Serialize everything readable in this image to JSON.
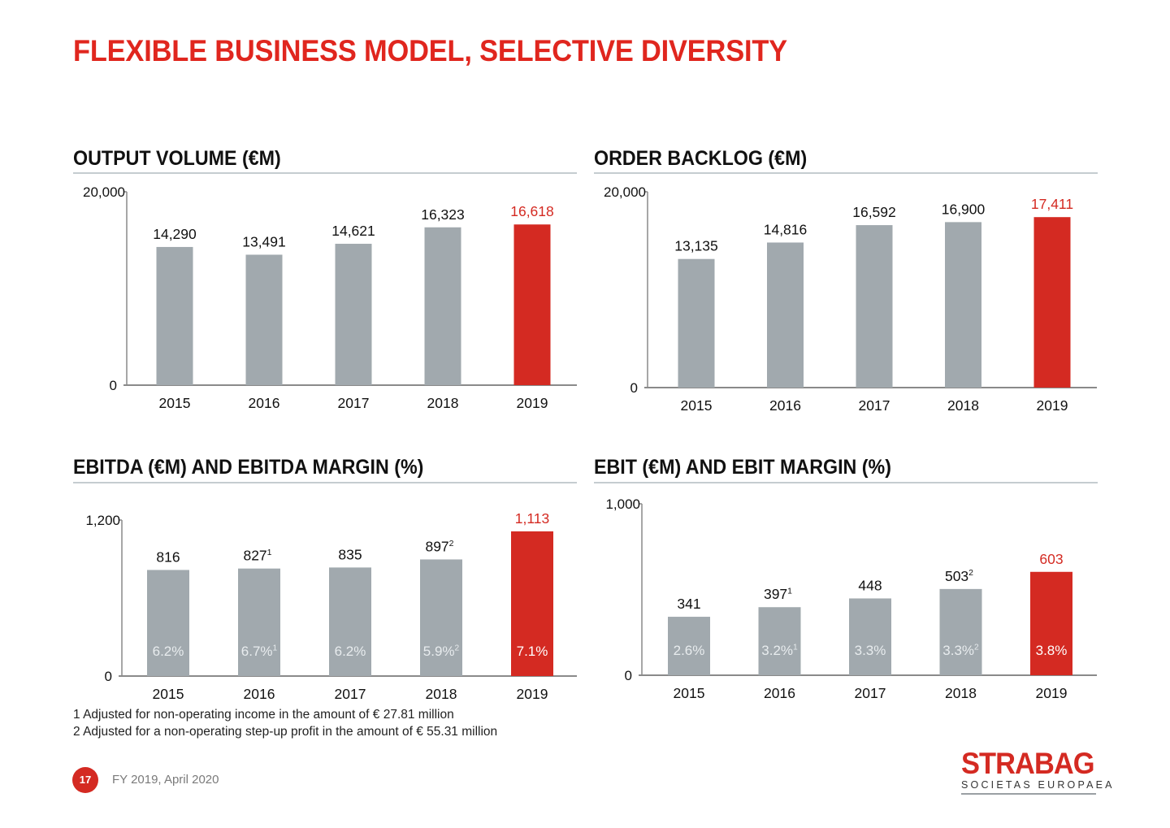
{
  "page": {
    "title": "FLEXIBLE BUSINESS MODEL, SELECTIVE DIVERSITY",
    "page_number": "17",
    "footer_text": "FY 2019, April 2020",
    "footnotes": [
      "1 Adjusted for non-operating income in the amount of € 27.81 million",
      "2 Adjusted for a non-operating step-up profit in the amount of € 55.31 million"
    ],
    "logo": {
      "name": "STRABAG",
      "subtitle": "SOCIETAS EUROPAEA"
    },
    "colors": {
      "accent": "#d42a22",
      "bar": "#a1a9ae",
      "axis": "#8a8a8a",
      "rule": "#c5ccd0",
      "margin_text": "#e8ecee"
    }
  },
  "chart_data": [
    {
      "type": "bar",
      "title": "OUTPUT VOLUME (€M)",
      "categories": [
        "2015",
        "2016",
        "2017",
        "2018",
        "2019"
      ],
      "values": [
        14290,
        13491,
        14621,
        16323,
        16618
      ],
      "value_labels": [
        "14,290",
        "13,491",
        "14,621",
        "16,323",
        "16,618"
      ],
      "highlight_index": 4,
      "ylim": [
        0,
        20000
      ],
      "yticks": [
        "0",
        "20,000"
      ],
      "grid": false
    },
    {
      "type": "bar",
      "title": "ORDER BACKLOG (€M)",
      "categories": [
        "2015",
        "2016",
        "2017",
        "2018",
        "2019"
      ],
      "values": [
        13135,
        14816,
        16592,
        16900,
        17411
      ],
      "value_labels": [
        "13,135",
        "14,816",
        "16,592",
        "16,900",
        "17,411"
      ],
      "highlight_index": 4,
      "ylim": [
        0,
        20000
      ],
      "yticks": [
        "0",
        "20,000"
      ],
      "grid": false
    },
    {
      "type": "bar",
      "title": "EBITDA (€M) AND EBITDA MARGIN (%)",
      "categories": [
        "2015",
        "2016",
        "2017",
        "2018",
        "2019"
      ],
      "values": [
        816,
        827,
        835,
        897,
        1113
      ],
      "value_labels": [
        "816",
        "827",
        "835",
        "897",
        "1,113"
      ],
      "value_footnotes": [
        "",
        "1",
        "",
        "2",
        ""
      ],
      "margins": [
        6.2,
        6.7,
        6.2,
        5.9,
        7.1
      ],
      "margin_labels": [
        "6.2%",
        "6.7%",
        "6.2%",
        "5.9%",
        "7.1%"
      ],
      "margin_footnotes": [
        "",
        "1",
        "",
        "2",
        ""
      ],
      "highlight_index": 4,
      "ylim": [
        0,
        1200
      ],
      "yticks": [
        "0",
        "1,200"
      ],
      "grid": false
    },
    {
      "type": "bar",
      "title": "EBIT (€M) AND EBIT MARGIN (%)",
      "categories": [
        "2015",
        "2016",
        "2017",
        "2018",
        "2019"
      ],
      "values": [
        341,
        397,
        448,
        503,
        603
      ],
      "value_labels": [
        "341",
        "397",
        "448",
        "503",
        "603"
      ],
      "value_footnotes": [
        "",
        "1",
        "",
        "2",
        ""
      ],
      "margins": [
        2.6,
        3.2,
        3.3,
        3.3,
        3.8
      ],
      "margin_labels": [
        "2.6%",
        "3.2%",
        "3.3%",
        "3.3%",
        "3.8%"
      ],
      "margin_footnotes": [
        "",
        "1",
        "",
        "2",
        ""
      ],
      "highlight_index": 4,
      "ylim": [
        0,
        1000
      ],
      "yticks": [
        "0",
        "1,000"
      ],
      "grid": false
    }
  ]
}
